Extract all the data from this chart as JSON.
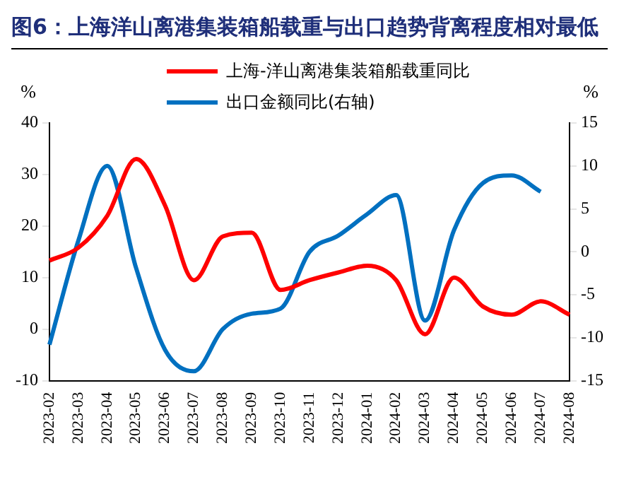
{
  "chart_data": {
    "type": "line",
    "title": "图6：上海洋山离港集装箱船载重与出口趋势背离程度相对最低",
    "ylabel": "%",
    "y2label": "%",
    "categories": [
      "2023-02",
      "2023-03",
      "2023-04",
      "2023-05",
      "2023-06",
      "2023-07",
      "2023-08",
      "2023-09",
      "2023-10",
      "2023-11",
      "2023-12",
      "2024-01",
      "2024-02",
      "2024-03",
      "2024-04",
      "2024-05",
      "2024-06",
      "2024-07",
      "2024-08"
    ],
    "series": [
      {
        "name": "上海-洋山离港集装箱船载重同比",
        "color": "#ff0000",
        "values": [
          13.3,
          15.8,
          22,
          33,
          24,
          9.5,
          18,
          18.7,
          7.6,
          9.5,
          11,
          12.3,
          9.5,
          -1,
          10,
          4.4,
          2.8,
          5.4,
          2.8
        ]
      },
      {
        "name": "出口金额同比(右轴)",
        "color": "#0070c0",
        "axis": "y2",
        "values": [
          -10.8,
          1.3,
          10,
          -1.9,
          -11.4,
          -13.9,
          -9,
          -7.2,
          -6.6,
          0,
          1.9,
          4.4,
          6.6,
          -8,
          2.5,
          8,
          8.9,
          7,
          null
        ]
      }
    ],
    "ylim": [
      -10,
      40
    ],
    "yticks": [
      -10,
      0,
      10,
      20,
      30,
      40
    ],
    "y2lim": [
      -15,
      15
    ],
    "y2ticks": [
      -15,
      -10,
      -5,
      0,
      5,
      10,
      15
    ],
    "legend": "top",
    "grid": false,
    "marker": "none",
    "line_style": "solid"
  }
}
